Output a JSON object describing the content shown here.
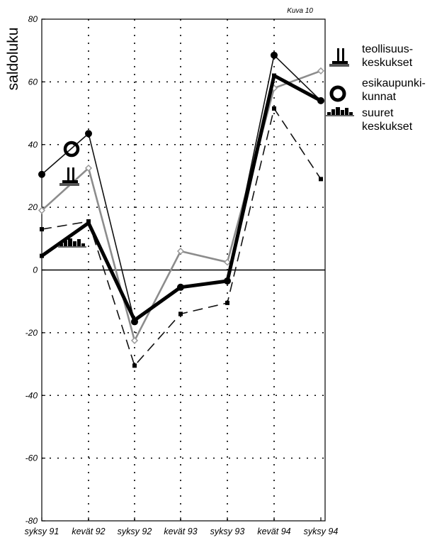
{
  "chart_data": {
    "type": "line",
    "figure_label": "Kuva 10",
    "ylabel": "saldoluku",
    "xlabel": "",
    "ylim": [
      -80,
      80
    ],
    "yticks": [
      "80",
      "60",
      "40",
      "20",
      "0",
      "-20",
      "-40",
      "-60",
      "-80"
    ],
    "categories": [
      "syksy 91",
      "kevät 92",
      "syksy 92",
      "kevät 93",
      "syksy 93",
      "kevät 94",
      "syksy 94"
    ],
    "legend": [
      "teollisuus-\nkeskukset",
      "esikaupunki-\nkunnat",
      "suuret\nkeskukset"
    ],
    "series": [
      {
        "name": "esikaupunkikunnat",
        "icon": "ring-icon",
        "color": "#111111",
        "values": [
          30.5,
          43.5,
          -16.5,
          -5.5,
          -3.5,
          68.5,
          54
        ]
      },
      {
        "name": "teollisuuskeskukset",
        "icon": "factory-icon",
        "color": "#111111",
        "values": [
          19,
          32.5,
          -22.5,
          6,
          2.5,
          58,
          63.5
        ]
      },
      {
        "name": "suuret keskukset",
        "icon": "city-icon",
        "color": "#000000",
        "values": [
          4.5,
          15,
          -16,
          -5.5,
          -3.5,
          62,
          54
        ]
      },
      {
        "name": "",
        "color": "#111111",
        "values": [
          13,
          15.5,
          -30.5,
          -14,
          -10.5,
          51.5,
          29
        ]
      }
    ],
    "grid": true,
    "zero_line": true
  }
}
